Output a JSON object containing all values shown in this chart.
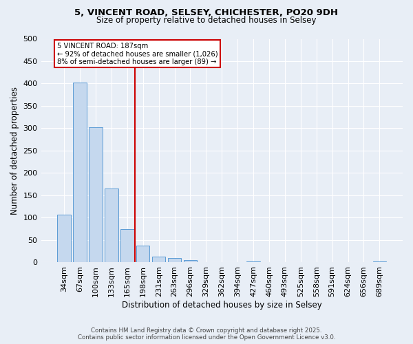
{
  "title1": "5, VINCENT ROAD, SELSEY, CHICHESTER, PO20 9DH",
  "title2": "Size of property relative to detached houses in Selsey",
  "xlabel": "Distribution of detached houses by size in Selsey",
  "ylabel": "Number of detached properties",
  "bar_labels": [
    "34sqm",
    "67sqm",
    "100sqm",
    "133sqm",
    "165sqm",
    "198sqm",
    "231sqm",
    "263sqm",
    "296sqm",
    "329sqm",
    "362sqm",
    "394sqm",
    "427sqm",
    "460sqm",
    "493sqm",
    "525sqm",
    "558sqm",
    "591sqm",
    "624sqm",
    "656sqm",
    "689sqm"
  ],
  "bar_values": [
    107,
    403,
    303,
    165,
    75,
    38,
    13,
    10,
    5,
    0,
    0,
    0,
    3,
    0,
    0,
    0,
    0,
    0,
    0,
    0,
    3
  ],
  "bar_color": "#c5d8ee",
  "bar_edge_color": "#5b9bd5",
  "vline_x_idx": 5,
  "vline_color": "#cc0000",
  "annotation_text": "5 VINCENT ROAD: 187sqm\n← 92% of detached houses are smaller (1,026)\n8% of semi-detached houses are larger (89) →",
  "annotation_box_color": "#ffffff",
  "annotation_box_edge": "#cc0000",
  "bg_color": "#e8eef6",
  "plot_bg_color": "#e8eef6",
  "footer1": "Contains HM Land Registry data © Crown copyright and database right 2025.",
  "footer2": "Contains public sector information licensed under the Open Government Licence v3.0.",
  "ylim": [
    0,
    500
  ],
  "yticks": [
    0,
    50,
    100,
    150,
    200,
    250,
    300,
    350,
    400,
    450,
    500
  ]
}
